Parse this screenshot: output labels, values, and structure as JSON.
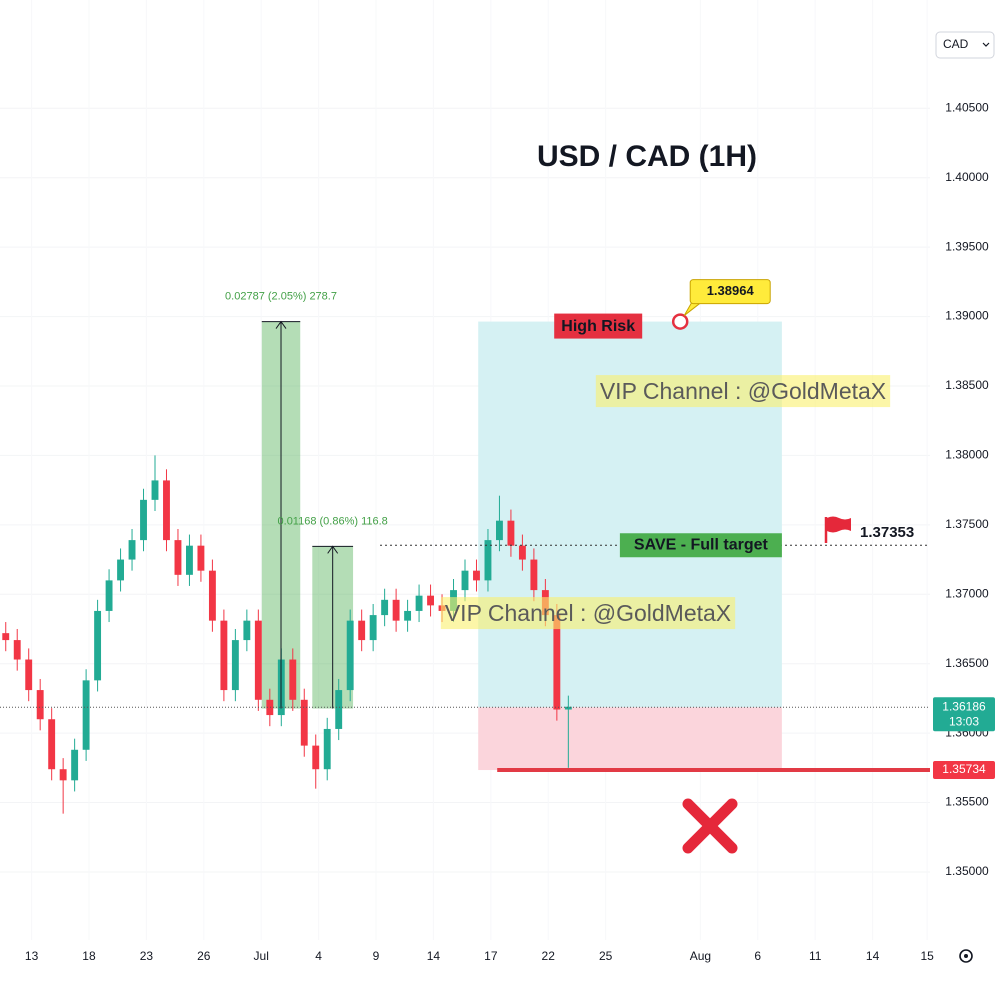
{
  "chart_data": {
    "type": "candlestick",
    "title": "USD / CAD (1H)",
    "currency": "CAD",
    "up_color": "#22ab94",
    "down_color": "#f23645",
    "grid": true,
    "x": [
      1,
      3,
      5,
      7,
      9,
      11,
      13,
      15,
      17,
      19,
      21,
      23,
      25,
      27,
      29,
      31,
      33,
      35,
      37,
      39,
      41,
      43,
      45,
      47,
      49,
      51,
      53,
      55,
      57,
      59,
      61,
      63,
      65,
      67,
      69,
      71,
      73,
      75,
      77,
      79,
      81,
      83,
      85,
      87,
      89,
      91,
      93,
      95,
      97,
      99
    ],
    "open": [
      1.3672,
      1.3667,
      1.3653,
      1.3631,
      1.361,
      1.3574,
      1.3566,
      1.3588,
      1.3638,
      1.3688,
      1.371,
      1.3725,
      1.3739,
      1.3768,
      1.3782,
      1.3739,
      1.3714,
      1.3735,
      1.3717,
      1.3681,
      1.3631,
      1.3667,
      1.3681,
      1.3624,
      1.3613,
      1.3653,
      1.3624,
      1.3591,
      1.3574,
      1.3603,
      1.3631,
      1.3681,
      1.3667,
      1.3685,
      1.3696,
      1.3681,
      1.3688,
      1.3699,
      1.3692,
      1.3688,
      1.3703,
      1.3717,
      1.371,
      1.3739,
      1.3753,
      1.3735,
      1.3725,
      1.3703,
      1.3685,
      1.3617
    ],
    "high": [
      1.368,
      1.3675,
      1.3661,
      1.3639,
      1.3618,
      1.3582,
      1.3596,
      1.3646,
      1.3696,
      1.3718,
      1.3733,
      1.3747,
      1.3776,
      1.38,
      1.379,
      1.3747,
      1.3743,
      1.3743,
      1.3725,
      1.3689,
      1.3675,
      1.3689,
      1.3689,
      1.3632,
      1.3661,
      1.3661,
      1.3632,
      1.3599,
      1.3611,
      1.3639,
      1.3689,
      1.3689,
      1.3693,
      1.3704,
      1.3704,
      1.3696,
      1.3707,
      1.3707,
      1.37,
      1.3711,
      1.3725,
      1.3725,
      1.3747,
      1.3771,
      1.3761,
      1.3743,
      1.3733,
      1.3711,
      1.3693,
      1.3627
    ],
    "low": [
      1.3659,
      1.3645,
      1.3623,
      1.3602,
      1.3566,
      1.3542,
      1.3558,
      1.358,
      1.363,
      1.368,
      1.3702,
      1.3717,
      1.3731,
      1.376,
      1.3731,
      1.3706,
      1.3706,
      1.3709,
      1.3673,
      1.3623,
      1.3623,
      1.3659,
      1.3616,
      1.3605,
      1.3605,
      1.3616,
      1.3583,
      1.356,
      1.3566,
      1.3595,
      1.3623,
      1.3659,
      1.3659,
      1.3677,
      1.3673,
      1.3673,
      1.368,
      1.3684,
      1.368,
      1.368,
      1.3695,
      1.3702,
      1.3702,
      1.3731,
      1.3727,
      1.3717,
      1.3695,
      1.3677,
      1.3609,
      1.3575
    ],
    "close": [
      1.3667,
      1.3653,
      1.3631,
      1.361,
      1.3574,
      1.3566,
      1.3588,
      1.3638,
      1.3688,
      1.371,
      1.3725,
      1.3739,
      1.3768,
      1.3782,
      1.3739,
      1.3714,
      1.3735,
      1.3717,
      1.3681,
      1.3631,
      1.3667,
      1.3681,
      1.3624,
      1.3613,
      1.3653,
      1.3624,
      1.3591,
      1.3574,
      1.3603,
      1.3631,
      1.3681,
      1.3667,
      1.3685,
      1.3696,
      1.3681,
      1.3688,
      1.3699,
      1.3692,
      1.3688,
      1.3703,
      1.3717,
      1.371,
      1.3739,
      1.3753,
      1.3735,
      1.3725,
      1.3703,
      1.3685,
      1.3617,
      1.3619
    ],
    "xlim": [
      0,
      162
    ],
    "xticks": [
      {
        "value": 5.5,
        "label": "13"
      },
      {
        "value": 15.5,
        "label": "18"
      },
      {
        "value": 25.5,
        "label": "23"
      },
      {
        "value": 35.5,
        "label": "26"
      },
      {
        "value": 45.5,
        "label": "Jul"
      },
      {
        "value": 55.5,
        "label": "4"
      },
      {
        "value": 65.5,
        "label": "9"
      },
      {
        "value": 75.5,
        "label": "14"
      },
      {
        "value": 85.5,
        "label": "17"
      },
      {
        "value": 95.5,
        "label": "22"
      },
      {
        "value": 105.5,
        "label": "25"
      },
      {
        "value": 122,
        "label": "Aug"
      },
      {
        "value": 132,
        "label": "6"
      },
      {
        "value": 142,
        "label": "11"
      },
      {
        "value": 152,
        "label": "14"
      },
      {
        "value": 161.5,
        "label": "15"
      }
    ],
    "ylim": [
      1.3451,
      1.4128
    ],
    "yticks": [
      {
        "value": 1.405,
        "label": "1.40500"
      },
      {
        "value": 1.4,
        "label": "1.40000"
      },
      {
        "value": 1.395,
        "label": "1.39500"
      },
      {
        "value": 1.39,
        "label": "1.39000"
      },
      {
        "value": 1.385,
        "label": "1.38500"
      },
      {
        "value": 1.38,
        "label": "1.38000"
      },
      {
        "value": 1.375,
        "label": "1.37500"
      },
      {
        "value": 1.37,
        "label": "1.37000"
      },
      {
        "value": 1.365,
        "label": "1.36500"
      },
      {
        "value": 1.36,
        "label": "1.36000"
      },
      {
        "value": 1.355,
        "label": "1.35500"
      },
      {
        "value": 1.35,
        "label": "1.35000"
      }
    ],
    "last_price": 1.36186,
    "countdown": "13:03",
    "position": {
      "target": 1.38964,
      "entry": 1.36186,
      "stop": 1.35734,
      "x_from": 83.3,
      "x_to": 136.2,
      "risk_label": "High Risk"
    },
    "target_line": {
      "value": 1.37353,
      "label": "SAVE - Full target"
    },
    "measures": [
      {
        "from": 1.36177,
        "to": 1.38964,
        "x_from": 45.6,
        "x_to": 52.3,
        "label": "0.02787 (2.05%) 278.7"
      },
      {
        "from": 1.36177,
        "to": 1.37345,
        "x_from": 54.4,
        "x_to": 61.5,
        "label": "0.01168 (0.86%) 116.8"
      }
    ],
    "watermarks": [
      "VIP Channel  : @GoldMetaX",
      "VIP Channel  : @GoldMetaX"
    ]
  }
}
